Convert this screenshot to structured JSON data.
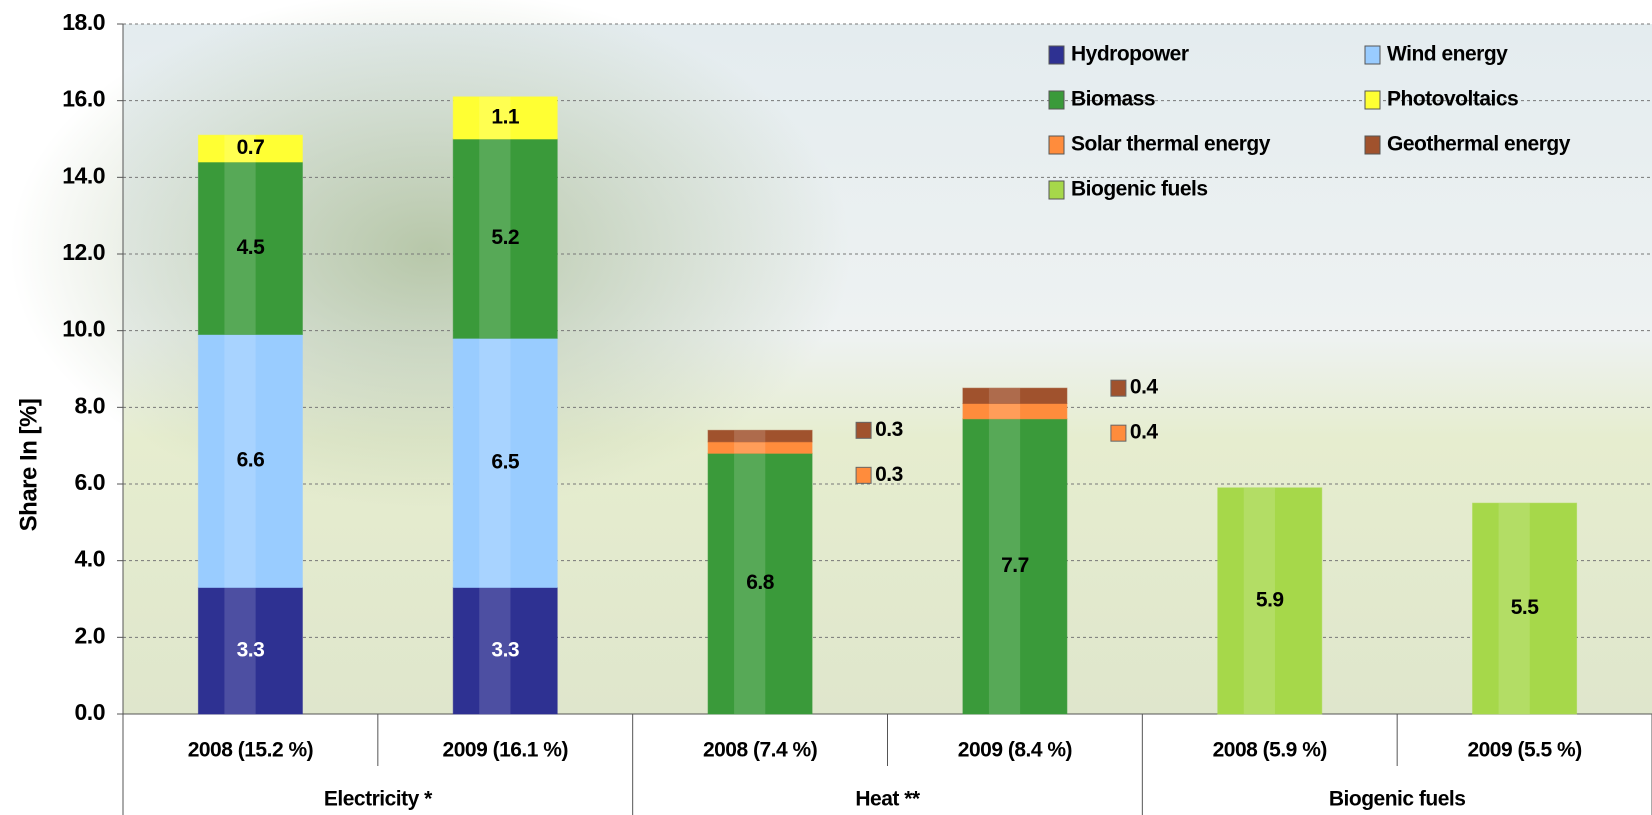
{
  "chart_data": {
    "type": "stacked_bar",
    "y_label": "Share In [%]",
    "categories": [
      "2008 (15.2 %)",
      "2009 (16.1 %)",
      "2008 (7.4 %)",
      "2009 (8.4 %)",
      "2008 (5.9 %)",
      "2009 (5.5 %)"
    ],
    "groups": [
      "Electricity *",
      "Heat **",
      "Biogenic fuels"
    ],
    "series": [
      {
        "name": "Hydropower",
        "color": "#2e3192",
        "values": [
          3.3,
          3.3,
          null,
          null,
          null,
          null
        ]
      },
      {
        "name": "Wind energy",
        "color": "#99ccff",
        "values": [
          6.6,
          6.5,
          null,
          null,
          null,
          null
        ]
      },
      {
        "name": "Biomass",
        "color": "#3a9a3a",
        "values": [
          4.5,
          5.2,
          6.8,
          7.7,
          null,
          null
        ]
      },
      {
        "name": "Photovoltaics",
        "color": "#ffff33",
        "values": [
          0.7,
          1.1,
          null,
          null,
          null,
          null
        ]
      },
      {
        "name": "Solar thermal energy",
        "color": "#ff8c3c",
        "values": [
          null,
          null,
          0.3,
          0.4,
          null,
          null
        ]
      },
      {
        "name": "Geothermal energy",
        "color": "#a0522d",
        "values": [
          null,
          null,
          0.3,
          0.4,
          null,
          null
        ]
      },
      {
        "name": "Biogenic fuels",
        "color": "#a6d84a",
        "values": [
          null,
          null,
          null,
          null,
          5.9,
          5.5
        ]
      }
    ],
    "ylim": [
      0,
      18
    ],
    "yticks": [
      {
        "value": 0,
        "label": "0.0"
      },
      {
        "value": 2,
        "label": "2.0"
      },
      {
        "value": 4,
        "label": "4.0"
      },
      {
        "value": 6,
        "label": "6.0"
      },
      {
        "value": 8,
        "label": "8.0"
      },
      {
        "value": 10,
        "label": "10.0"
      },
      {
        "value": 12,
        "label": "12.0"
      },
      {
        "value": 14,
        "label": "14.0"
      },
      {
        "value": 16,
        "label": "16.0"
      },
      {
        "value": 18,
        "label": "18.0"
      }
    ],
    "grid": true
  }
}
